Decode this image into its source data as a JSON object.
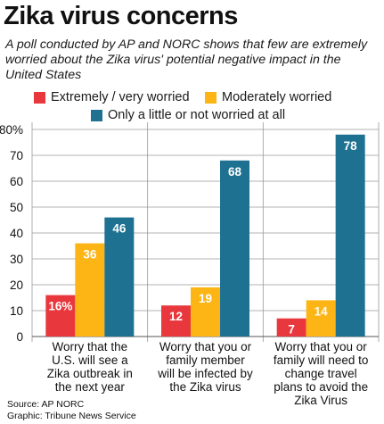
{
  "title": "Zika virus concerns",
  "subtitle": "A poll conducted by AP and NORC shows that few are extremely worried about the Zika virus' potential negative impact in the United States",
  "legend": [
    {
      "label": "Extremely / very worried",
      "color": "#e8383d"
    },
    {
      "label": "Moderately worried",
      "color": "#fdb515"
    },
    {
      "label": "Only a little or not worried at all",
      "color": "#1f7191"
    }
  ],
  "chart_data": {
    "type": "bar",
    "categories": [
      [
        "Worry that the",
        "U.S. will see a",
        "Zika outbreak in",
        "the next year"
      ],
      [
        "Worry that you or",
        "family member",
        "will be infected by",
        "the Zika virus"
      ],
      [
        "Worry that you or",
        "family will need to",
        "change travel",
        "plans to avoid the",
        "Zika Virus"
      ]
    ],
    "series": [
      {
        "name": "Extremely / very worried",
        "values": [
          16,
          12,
          7
        ],
        "labels": [
          "16%",
          "12",
          "7"
        ],
        "color": "#e8383d"
      },
      {
        "name": "Moderately worried",
        "values": [
          36,
          19,
          14
        ],
        "labels": [
          "36",
          "19",
          "14"
        ],
        "color": "#fdb515"
      },
      {
        "name": "Only a little or not worried at all",
        "values": [
          46,
          68,
          78
        ],
        "labels": [
          "46",
          "68",
          "78"
        ],
        "color": "#1f7191"
      }
    ],
    "ylim": [
      0,
      80
    ],
    "yticks": [
      "0",
      "10",
      "20",
      "30",
      "40",
      "50",
      "60",
      "70",
      "80%"
    ],
    "grid": true
  },
  "source": "Source: AP NORC",
  "credit": "Graphic: Tribune News Service"
}
